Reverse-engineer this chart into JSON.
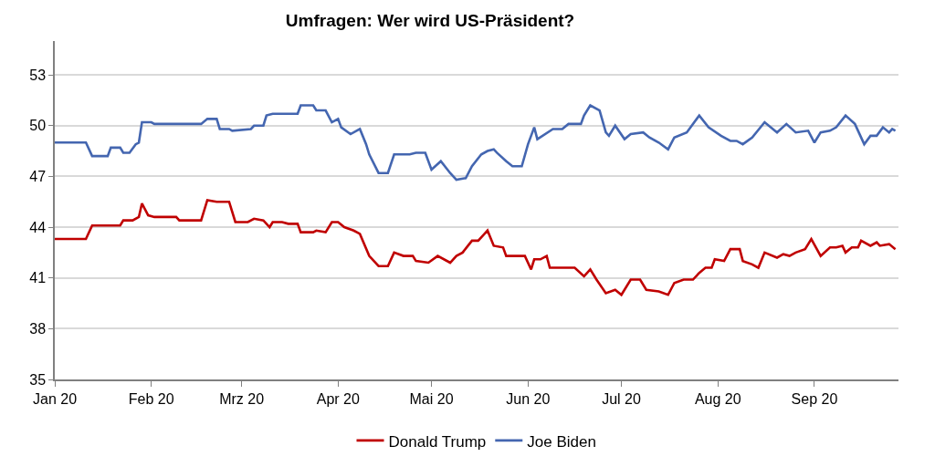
{
  "chart_data": {
    "type": "line",
    "title": "Umfragen: Wer wird US-Präsident?",
    "xlim": [
      "2020-01-01",
      "2020-09-28"
    ],
    "xticks": [
      {
        "value": "2020-01-01",
        "label": "Jan 20"
      },
      {
        "value": "2020-02-01",
        "label": "Feb 20"
      },
      {
        "value": "2020-03-01",
        "label": "Mrz 20"
      },
      {
        "value": "2020-04-01",
        "label": "Apr 20"
      },
      {
        "value": "2020-05-01",
        "label": "Mai 20"
      },
      {
        "value": "2020-06-01",
        "label": "Jun 20"
      },
      {
        "value": "2020-07-01",
        "label": "Jul 20"
      },
      {
        "value": "2020-08-01",
        "label": "Aug 20"
      },
      {
        "value": "2020-09-01",
        "label": "Sep 20"
      }
    ],
    "ylim": [
      35,
      55
    ],
    "yticks": [
      35,
      38,
      41,
      44,
      47,
      50,
      53
    ],
    "grid": "y",
    "legend": "bottom",
    "marker": "none",
    "line_style": "solid",
    "series": [
      {
        "name": "Donald Trump",
        "color": "#c00000",
        "x": [
          "2020-01-01",
          "2020-01-11",
          "2020-01-13",
          "2020-01-22",
          "2020-01-23",
          "2020-01-26",
          "2020-01-28",
          "2020-01-29",
          "2020-01-31",
          "2020-02-02",
          "2020-02-09",
          "2020-02-10",
          "2020-02-17",
          "2020-02-19",
          "2020-02-22",
          "2020-02-26",
          "2020-02-28",
          "2020-03-03",
          "2020-03-05",
          "2020-03-08",
          "2020-03-10",
          "2020-03-11",
          "2020-03-14",
          "2020-03-16",
          "2020-03-19",
          "2020-03-20",
          "2020-03-24",
          "2020-03-25",
          "2020-03-28",
          "2020-03-30",
          "2020-04-01",
          "2020-04-03",
          "2020-04-06",
          "2020-04-08",
          "2020-04-11",
          "2020-04-14",
          "2020-04-17",
          "2020-04-19",
          "2020-04-22",
          "2020-04-25",
          "2020-04-26",
          "2020-04-30",
          "2020-05-03",
          "2020-05-07",
          "2020-05-09",
          "2020-05-11",
          "2020-05-14",
          "2020-05-16",
          "2020-05-19",
          "2020-05-21",
          "2020-05-24",
          "2020-05-25",
          "2020-05-31",
          "2020-06-02",
          "2020-06-03",
          "2020-06-05",
          "2020-06-07",
          "2020-06-08",
          "2020-06-16",
          "2020-06-19",
          "2020-06-21",
          "2020-06-23",
          "2020-06-26",
          "2020-06-29",
          "2020-07-01",
          "2020-07-04",
          "2020-07-07",
          "2020-07-09",
          "2020-07-13",
          "2020-07-16",
          "2020-07-18",
          "2020-07-21",
          "2020-07-24",
          "2020-07-26",
          "2020-07-28",
          "2020-07-30",
          "2020-07-31",
          "2020-08-03",
          "2020-08-05",
          "2020-08-08",
          "2020-08-09",
          "2020-08-12",
          "2020-08-14",
          "2020-08-16",
          "2020-08-20",
          "2020-08-22",
          "2020-08-24",
          "2020-08-26",
          "2020-08-29",
          "2020-08-31",
          "2020-09-03",
          "2020-09-06",
          "2020-09-08",
          "2020-09-10",
          "2020-09-11",
          "2020-09-13",
          "2020-09-15",
          "2020-09-16",
          "2020-09-19",
          "2020-09-21",
          "2020-09-22",
          "2020-09-25",
          "2020-09-27"
        ],
        "values": [
          43.3,
          43.3,
          44.1,
          44.1,
          44.4,
          44.4,
          44.6,
          45.4,
          44.7,
          44.6,
          44.6,
          44.4,
          44.4,
          45.6,
          45.5,
          45.5,
          44.3,
          44.3,
          44.5,
          44.4,
          44.0,
          44.3,
          44.3,
          44.2,
          44.2,
          43.7,
          43.7,
          43.8,
          43.7,
          44.3,
          44.3,
          44.0,
          43.8,
          43.6,
          42.3,
          41.7,
          41.7,
          42.5,
          42.3,
          42.3,
          42.0,
          41.9,
          42.3,
          41.9,
          42.3,
          42.5,
          43.2,
          43.2,
          43.8,
          42.9,
          42.8,
          42.3,
          42.3,
          41.5,
          42.1,
          42.1,
          42.3,
          41.6,
          41.6,
          41.1,
          41.5,
          40.9,
          40.1,
          40.3,
          40.0,
          40.9,
          40.9,
          40.3,
          40.2,
          40.0,
          40.7,
          40.9,
          40.9,
          41.3,
          41.6,
          41.6,
          42.1,
          42.0,
          42.7,
          42.7,
          42.0,
          41.8,
          41.6,
          42.5,
          42.2,
          42.4,
          42.3,
          42.5,
          42.7,
          43.3,
          42.3,
          42.8,
          42.8,
          42.9,
          42.5,
          42.8,
          42.8,
          43.2,
          42.9,
          43.1,
          42.9,
          43.0,
          42.7
        ]
      },
      {
        "name": "Joe Biden",
        "color": "#4466b0",
        "x": [
          "2020-01-01",
          "2020-01-11",
          "2020-01-13",
          "2020-01-18",
          "2020-01-19",
          "2020-01-22",
          "2020-01-23",
          "2020-01-25",
          "2020-01-27",
          "2020-01-28",
          "2020-01-29",
          "2020-02-01",
          "2020-02-02",
          "2020-02-17",
          "2020-02-19",
          "2020-02-22",
          "2020-02-23",
          "2020-02-26",
          "2020-02-27",
          "2020-03-04",
          "2020-03-05",
          "2020-03-08",
          "2020-03-09",
          "2020-03-11",
          "2020-03-19",
          "2020-03-20",
          "2020-03-24",
          "2020-03-25",
          "2020-03-28",
          "2020-03-30",
          "2020-04-01",
          "2020-04-02",
          "2020-04-05",
          "2020-04-08",
          "2020-04-10",
          "2020-04-11",
          "2020-04-14",
          "2020-04-17",
          "2020-04-19",
          "2020-04-24",
          "2020-04-26",
          "2020-04-29",
          "2020-05-01",
          "2020-05-04",
          "2020-05-07",
          "2020-05-09",
          "2020-05-12",
          "2020-05-14",
          "2020-05-17",
          "2020-05-19",
          "2020-05-21",
          "2020-05-22",
          "2020-05-25",
          "2020-05-27",
          "2020-05-30",
          "2020-06-01",
          "2020-06-03",
          "2020-06-04",
          "2020-06-09",
          "2020-06-12",
          "2020-06-14",
          "2020-06-18",
          "2020-06-19",
          "2020-06-21",
          "2020-06-24",
          "2020-06-26",
          "2020-06-27",
          "2020-06-29",
          "2020-07-02",
          "2020-07-04",
          "2020-07-08",
          "2020-07-10",
          "2020-07-13",
          "2020-07-16",
          "2020-07-18",
          "2020-07-22",
          "2020-07-26",
          "2020-07-29",
          "2020-08-02",
          "2020-08-05",
          "2020-08-07",
          "2020-08-09",
          "2020-08-12",
          "2020-08-16",
          "2020-08-20",
          "2020-08-23",
          "2020-08-26",
          "2020-08-30",
          "2020-09-01",
          "2020-09-03",
          "2020-09-06",
          "2020-09-08",
          "2020-09-11",
          "2020-09-14",
          "2020-09-17",
          "2020-09-19",
          "2020-09-21",
          "2020-09-23",
          "2020-09-25",
          "2020-09-26",
          "2020-09-27"
        ],
        "values": [
          49.0,
          49.0,
          48.2,
          48.2,
          48.7,
          48.7,
          48.4,
          48.4,
          48.9,
          49.0,
          50.2,
          50.2,
          50.1,
          50.1,
          50.4,
          50.4,
          49.8,
          49.8,
          49.7,
          49.8,
          50.0,
          50.0,
          50.6,
          50.7,
          50.7,
          51.2,
          51.2,
          50.9,
          50.9,
          50.2,
          50.4,
          49.9,
          49.5,
          49.8,
          48.9,
          48.3,
          47.2,
          47.2,
          48.3,
          48.3,
          48.4,
          48.4,
          47.4,
          47.9,
          47.2,
          46.8,
          46.9,
          47.6,
          48.3,
          48.5,
          48.6,
          48.4,
          47.9,
          47.6,
          47.6,
          48.9,
          49.9,
          49.2,
          49.8,
          49.8,
          50.1,
          50.1,
          50.6,
          51.2,
          50.9,
          49.6,
          49.4,
          50.0,
          49.2,
          49.5,
          49.6,
          49.3,
          49.0,
          48.6,
          49.3,
          49.6,
          50.6,
          49.9,
          49.4,
          49.1,
          49.1,
          48.9,
          49.3,
          50.2,
          49.6,
          50.1,
          49.6,
          49.7,
          49.0,
          49.6,
          49.7,
          49.9,
          50.6,
          50.1,
          48.9,
          49.4,
          49.4,
          49.9,
          49.6,
          49.8,
          49.7
        ]
      }
    ]
  }
}
